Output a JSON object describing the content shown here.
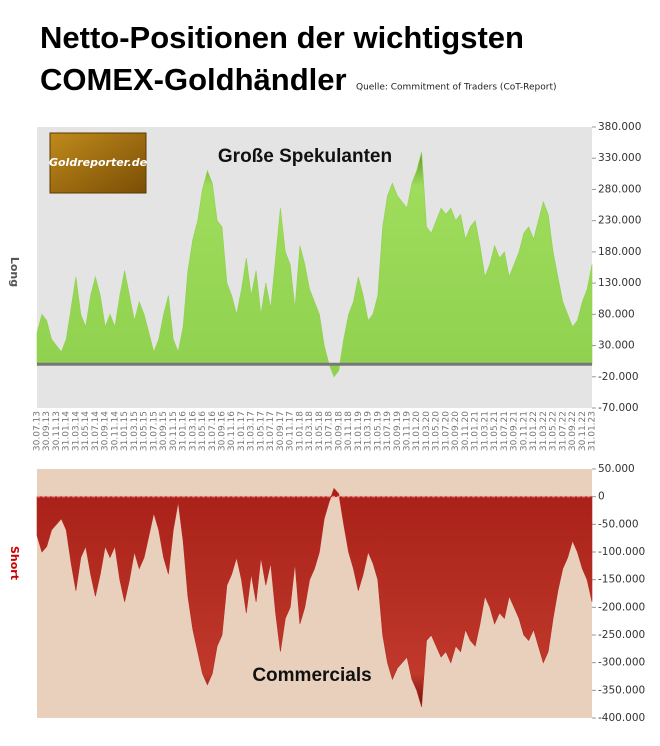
{
  "chart_data": [
    {
      "type": "area",
      "title": [
        "Netto-Positionen der wichtigsten",
        "COMEX-Goldhändler"
      ],
      "source": "Quelle: Commitment of Traders (CoT-Report)",
      "logo": "Goldreporter.de",
      "ylabel": "Long",
      "annotation": "Große Spekulanten",
      "color": "#8fd14f",
      "plot_background": "#e4e4e4",
      "categories": [
        "30.07.13",
        null,
        "30.09.13",
        null,
        "30.11.13",
        null,
        "31.01.14",
        null,
        "31.03.14",
        null,
        "31.05.14",
        null,
        "31.07.14",
        null,
        "30.09.14",
        null,
        "30.11.14",
        null,
        "31.01.15",
        null,
        "31.03.15",
        null,
        "31.05.15",
        null,
        "31.07.15",
        null,
        "30.09.15",
        null,
        "30.11.15",
        null,
        "31.01.16",
        null,
        "31.03.16",
        null,
        "31.05.16",
        null,
        "31.07.16",
        null,
        "30.09.16",
        null,
        "30.11.16",
        null,
        "31.01.17",
        null,
        "31.03.17",
        null,
        "31.05.17",
        null,
        "31.07.17",
        null,
        "30.09.17",
        null,
        "30.11.17",
        null,
        "31.01.18",
        null,
        "31.03.18",
        null,
        "31.05.18",
        null,
        "31.07.18",
        null,
        "30.09.18",
        null,
        "30.11.18",
        null,
        "31.01.19",
        null,
        "31.03.19",
        null,
        "31.05.19",
        null,
        "31.07.19",
        null,
        "30.09.19",
        null,
        "30.11.19",
        null,
        "31.01.20",
        null,
        "31.03.20",
        null,
        "31.05.20",
        null,
        "31.07.20",
        null,
        "30.09.20",
        null,
        "30.11.20",
        null,
        "31.01.21",
        null,
        "31.03.21",
        null,
        "31.05.21",
        null,
        "31.07.21",
        null,
        "30.09.21",
        null,
        "30.11.21",
        null,
        "31.01.22",
        null,
        "31.03.22",
        null,
        "31.05.22",
        null,
        "31.07.22",
        null,
        "30.09.22",
        null,
        "30.11.22",
        null,
        "31.01.23"
      ],
      "values": [
        50000,
        80000,
        70000,
        40000,
        30000,
        20000,
        40000,
        90000,
        140000,
        80000,
        60000,
        110000,
        140000,
        110000,
        60000,
        80000,
        60000,
        110000,
        150000,
        110000,
        70000,
        100000,
        80000,
        50000,
        20000,
        40000,
        80000,
        110000,
        40000,
        20000,
        60000,
        150000,
        200000,
        230000,
        280000,
        310000,
        290000,
        230000,
        220000,
        130000,
        110000,
        80000,
        120000,
        170000,
        110000,
        150000,
        80000,
        130000,
        90000,
        170000,
        250000,
        180000,
        160000,
        90000,
        190000,
        160000,
        120000,
        100000,
        80000,
        30000,
        0,
        -20000,
        -10000,
        40000,
        80000,
        100000,
        140000,
        110000,
        70000,
        80000,
        110000,
        220000,
        270000,
        290000,
        270000,
        260000,
        250000,
        290000,
        310000,
        340000,
        220000,
        210000,
        230000,
        250000,
        240000,
        250000,
        230000,
        240000,
        200000,
        220000,
        230000,
        190000,
        140000,
        160000,
        190000,
        170000,
        180000,
        140000,
        160000,
        180000,
        210000,
        220000,
        200000,
        230000,
        260000,
        240000,
        180000,
        140000,
        100000,
        80000,
        60000,
        70000,
        100000,
        120000,
        160000
      ],
      "ylim": [
        -70000,
        380000
      ],
      "yticks": [
        {
          "value": 380000,
          "label": "380.000"
        },
        {
          "value": 330000,
          "label": "330.000"
        },
        {
          "value": 280000,
          "label": "280.000"
        },
        {
          "value": 230000,
          "label": "230.000"
        },
        {
          "value": 180000,
          "label": "180.000"
        },
        {
          "value": 130000,
          "label": "130.000"
        },
        {
          "value": 80000,
          "label": "80.000"
        },
        {
          "value": 30000,
          "label": "30.000"
        },
        {
          "value": -20000,
          "label": "-20.000"
        },
        {
          "value": -70000,
          "label": "-70.000"
        }
      ]
    },
    {
      "type": "area",
      "ylabel": "Short",
      "annotation": "Commercials",
      "color": "#b52a22",
      "plot_background": "#e8d0bc",
      "values": [
        -70000,
        -100000,
        -90000,
        -60000,
        -50000,
        -40000,
        -60000,
        -120000,
        -170000,
        -110000,
        -90000,
        -140000,
        -180000,
        -140000,
        -90000,
        -110000,
        -90000,
        -150000,
        -190000,
        -150000,
        -100000,
        -130000,
        -110000,
        -70000,
        -30000,
        -60000,
        -110000,
        -140000,
        -60000,
        -10000,
        -80000,
        -180000,
        -240000,
        -280000,
        -320000,
        -340000,
        -320000,
        -270000,
        -250000,
        -160000,
        -140000,
        -110000,
        -150000,
        -210000,
        -140000,
        -190000,
        -110000,
        -160000,
        -120000,
        -210000,
        -280000,
        -220000,
        -200000,
        -120000,
        -230000,
        -200000,
        -150000,
        -130000,
        -100000,
        -40000,
        -10000,
        15000,
        5000,
        -50000,
        -100000,
        -130000,
        -170000,
        -140000,
        -100000,
        -120000,
        -150000,
        -250000,
        -300000,
        -330000,
        -310000,
        -300000,
        -290000,
        -330000,
        -350000,
        -380000,
        -260000,
        -250000,
        -270000,
        -290000,
        -280000,
        -300000,
        -270000,
        -280000,
        -240000,
        -260000,
        -270000,
        -230000,
        -180000,
        -200000,
        -230000,
        -210000,
        -220000,
        -180000,
        -200000,
        -220000,
        -250000,
        -260000,
        -240000,
        -270000,
        -300000,
        -280000,
        -220000,
        -170000,
        -130000,
        -110000,
        -80000,
        -100000,
        -130000,
        -150000,
        -190000
      ],
      "ylim": [
        -400000,
        50000
      ],
      "yticks": [
        {
          "value": 50000,
          "label": "50.000"
        },
        0,
        {
          "value": -50000,
          "label": "-50.000"
        },
        {
          "value": -100000,
          "label": "-100.000"
        },
        {
          "value": -150000,
          "label": "-150.000"
        },
        {
          "value": -200000,
          "label": "-200.000"
        },
        {
          "value": -250000,
          "label": "-250.000"
        },
        {
          "value": -300000,
          "label": "-300.000"
        },
        {
          "value": -350000,
          "label": "-350.000"
        },
        {
          "value": -400000,
          "label": "-400.000"
        }
      ]
    }
  ]
}
